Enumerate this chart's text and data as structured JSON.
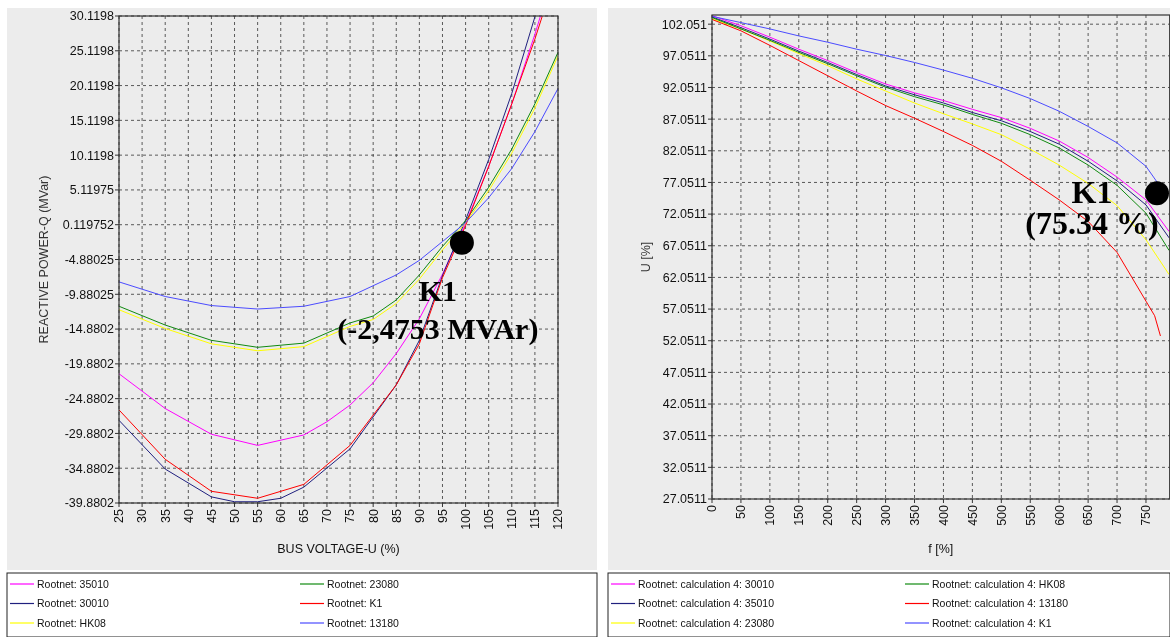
{
  "chart_data": [
    {
      "type": "line",
      "xlabel": "BUS VOLTAGE-U (%)",
      "ylabel": "REACTIVE POWER-Q (MVar)",
      "xlim": [
        25,
        120
      ],
      "ylim": [
        -39.8802,
        30.1198
      ],
      "xticks": [
        25,
        30,
        35,
        40,
        45,
        50,
        55,
        60,
        65,
        70,
        75,
        80,
        85,
        90,
        95,
        100,
        105,
        110,
        115,
        120
      ],
      "yticks": [
        30.1198,
        25.1198,
        20.1198,
        15.1198,
        10.1198,
        5.11975,
        0.119752,
        -4.88025,
        -9.88025,
        -14.8802,
        -19.8802,
        -24.8802,
        -29.8802,
        -34.8802,
        -39.8802
      ],
      "grid": true,
      "legend": "bottom",
      "annotations": [
        {
          "text": "K1\n(-2,4753 MVAr)",
          "x": 99.2,
          "y": -2.4753
        }
      ],
      "series": [
        {
          "name": "Rootnet: 35010",
          "color": "#ff00ff",
          "x": [
            25,
            35,
            45,
            55,
            65,
            70,
            75,
            80,
            85,
            90,
            95,
            100,
            105,
            110,
            115,
            116.2
          ],
          "values": [
            -21.3,
            -26.3,
            -30.0,
            -31.6,
            -30.1,
            -28.2,
            -25.8,
            -22.6,
            -18.4,
            -13.4,
            -7.0,
            0.3,
            8.5,
            17.5,
            27.5,
            30.1
          ]
        },
        {
          "name": "Rootnet: 30010",
          "color": "#20207f",
          "x": [
            25,
            35,
            45,
            50,
            55,
            60,
            65,
            75,
            85,
            90,
            95,
            100,
            105,
            110,
            115
          ],
          "values": [
            -28.0,
            -35.0,
            -39.0,
            -39.7,
            -39.7,
            -39.2,
            -37.6,
            -32.1,
            -22.9,
            -16.5,
            -7.2,
            0.8,
            9.5,
            19.0,
            30.0
          ]
        },
        {
          "name": "Rootnet: HK08",
          "color": "#ffff00",
          "x": [
            25,
            35,
            45,
            55,
            65,
            75,
            80,
            85,
            90,
            95,
            100,
            105,
            110,
            115,
            120
          ],
          "values": [
            -12.1,
            -14.8,
            -17.0,
            -18.0,
            -17.4,
            -14.5,
            -13.5,
            -11.2,
            -7.7,
            -3.5,
            0.4,
            5.0,
            10.4,
            16.9,
            24.4
          ]
        },
        {
          "name": "Rootnet: 23080",
          "color": "#108a10",
          "x": [
            25,
            35,
            45,
            55,
            65,
            75,
            80,
            85,
            90,
            95,
            100,
            105,
            110,
            115,
            120
          ],
          "values": [
            -11.6,
            -14.3,
            -16.5,
            -17.5,
            -16.9,
            -14.0,
            -13.0,
            -10.7,
            -7.1,
            -3.0,
            0.7,
            5.5,
            11.0,
            17.5,
            24.9
          ]
        },
        {
          "name": "Rootnet: K1",
          "color": "#ff0000",
          "x": [
            25,
            35,
            45,
            55,
            65,
            75,
            85,
            90,
            95,
            100,
            105,
            110,
            115,
            116.6
          ],
          "values": [
            -26.5,
            -33.6,
            -38.2,
            -39.2,
            -37.2,
            -31.6,
            -22.9,
            -17.0,
            -7.5,
            0.0,
            8.5,
            17.5,
            26.8,
            30.1
          ]
        },
        {
          "name": "Rootnet: 13180",
          "color": "#4b4bff",
          "x": [
            25,
            35,
            45,
            55,
            65,
            75,
            85,
            90,
            95,
            100,
            105,
            110,
            115,
            120
          ],
          "values": [
            -8.1,
            -10.2,
            -11.5,
            -12.0,
            -11.6,
            -10.2,
            -7.1,
            -5.0,
            -2.3,
            0.4,
            4.0,
            8.2,
            13.5,
            19.7
          ]
        }
      ]
    },
    {
      "type": "line",
      "xlabel": "f [%]",
      "ylabel": "U [%]",
      "xlim": [
        0,
        791
      ],
      "ylim": [
        27.0511,
        103.5
      ],
      "xticks": [
        0,
        50,
        100,
        150,
        200,
        250,
        300,
        350,
        400,
        450,
        500,
        550,
        600,
        650,
        700,
        750
      ],
      "yticks": [
        {
          "value": 102.0511,
          "label": "102.051"
        },
        97.0511,
        92.0511,
        87.0511,
        82.0511,
        77.0511,
        72.0511,
        67.0511,
        62.0511,
        57.0511,
        52.0511,
        47.0511,
        42.0511,
        37.0511,
        32.0511,
        27.0511
      ],
      "grid": true,
      "legend": "bottom",
      "annotations": [
        {
          "text": "K1\n(75.34 %)",
          "x": 769,
          "y": 75.34
        }
      ],
      "series": [
        {
          "name": "Rootnet: calculation 4: 30010",
          "color": "#ff00ff",
          "x": [
            0,
            50,
            100,
            150,
            200,
            250,
            300,
            350,
            400,
            450,
            500,
            550,
            600,
            650,
            700,
            750,
            790
          ],
          "values": [
            103.4,
            101.8,
            100.0,
            98.1,
            96.3,
            94.4,
            92.6,
            91.2,
            90.0,
            88.6,
            87.3,
            85.6,
            83.6,
            81.0,
            77.9,
            74.3,
            69.3
          ]
        },
        {
          "name": "Rootnet: calculation 4: 35010",
          "color": "#20207f",
          "x": [
            0,
            50,
            100,
            150,
            200,
            250,
            300,
            350,
            400,
            450,
            500,
            550,
            600,
            650,
            700,
            750,
            790
          ],
          "values": [
            103.2,
            101.5,
            99.7,
            97.8,
            96.0,
            94.1,
            92.3,
            90.9,
            89.6,
            88.1,
            86.8,
            85.1,
            83.1,
            80.4,
            77.3,
            73.5,
            68.3
          ]
        },
        {
          "name": "Rootnet: calculation 4: 23080",
          "color": "#ffff00",
          "x": [
            0,
            50,
            100,
            150,
            200,
            250,
            300,
            350,
            400,
            450,
            500,
            550,
            600,
            650,
            700,
            750,
            790
          ],
          "values": [
            102.9,
            101.3,
            99.4,
            97.4,
            95.5,
            93.4,
            91.5,
            89.6,
            87.9,
            86.3,
            84.6,
            82.3,
            79.8,
            76.9,
            73.4,
            68.0,
            62.5
          ]
        },
        {
          "name": "Rootnet: calculation 4: HK08",
          "color": "#108a10",
          "x": [
            0,
            50,
            100,
            150,
            200,
            250,
            300,
            350,
            400,
            450,
            500,
            550,
            600,
            650,
            700,
            750,
            790
          ],
          "values": [
            103.1,
            101.3,
            99.5,
            97.6,
            95.8,
            93.9,
            92.1,
            90.6,
            89.3,
            87.8,
            86.4,
            84.6,
            82.5,
            79.8,
            76.6,
            72.2,
            66.3
          ]
        },
        {
          "name": "Rootnet: calculation 4: 13180",
          "color": "#ff0000",
          "x": [
            0,
            50,
            100,
            150,
            200,
            250,
            300,
            350,
            400,
            450,
            500,
            550,
            600,
            650,
            700,
            750,
            765,
            775
          ],
          "values": [
            102.8,
            101.0,
            98.7,
            96.3,
            93.9,
            91.5,
            89.2,
            87.2,
            85.1,
            82.9,
            80.4,
            77.4,
            74.3,
            70.9,
            66.0,
            58.3,
            56.0,
            52.8
          ]
        },
        {
          "name": "Rootnet: calculation 4: K1",
          "color": "#4b4bff",
          "x": [
            0,
            50,
            100,
            150,
            200,
            250,
            300,
            350,
            400,
            450,
            500,
            550,
            600,
            650,
            700,
            750,
            770
          ],
          "values": [
            103.3,
            102.3,
            101.3,
            100.2,
            99.2,
            98.1,
            97.1,
            96.0,
            94.8,
            93.5,
            92.0,
            90.3,
            88.3,
            85.9,
            83.3,
            79.6,
            77.0
          ]
        }
      ]
    }
  ]
}
